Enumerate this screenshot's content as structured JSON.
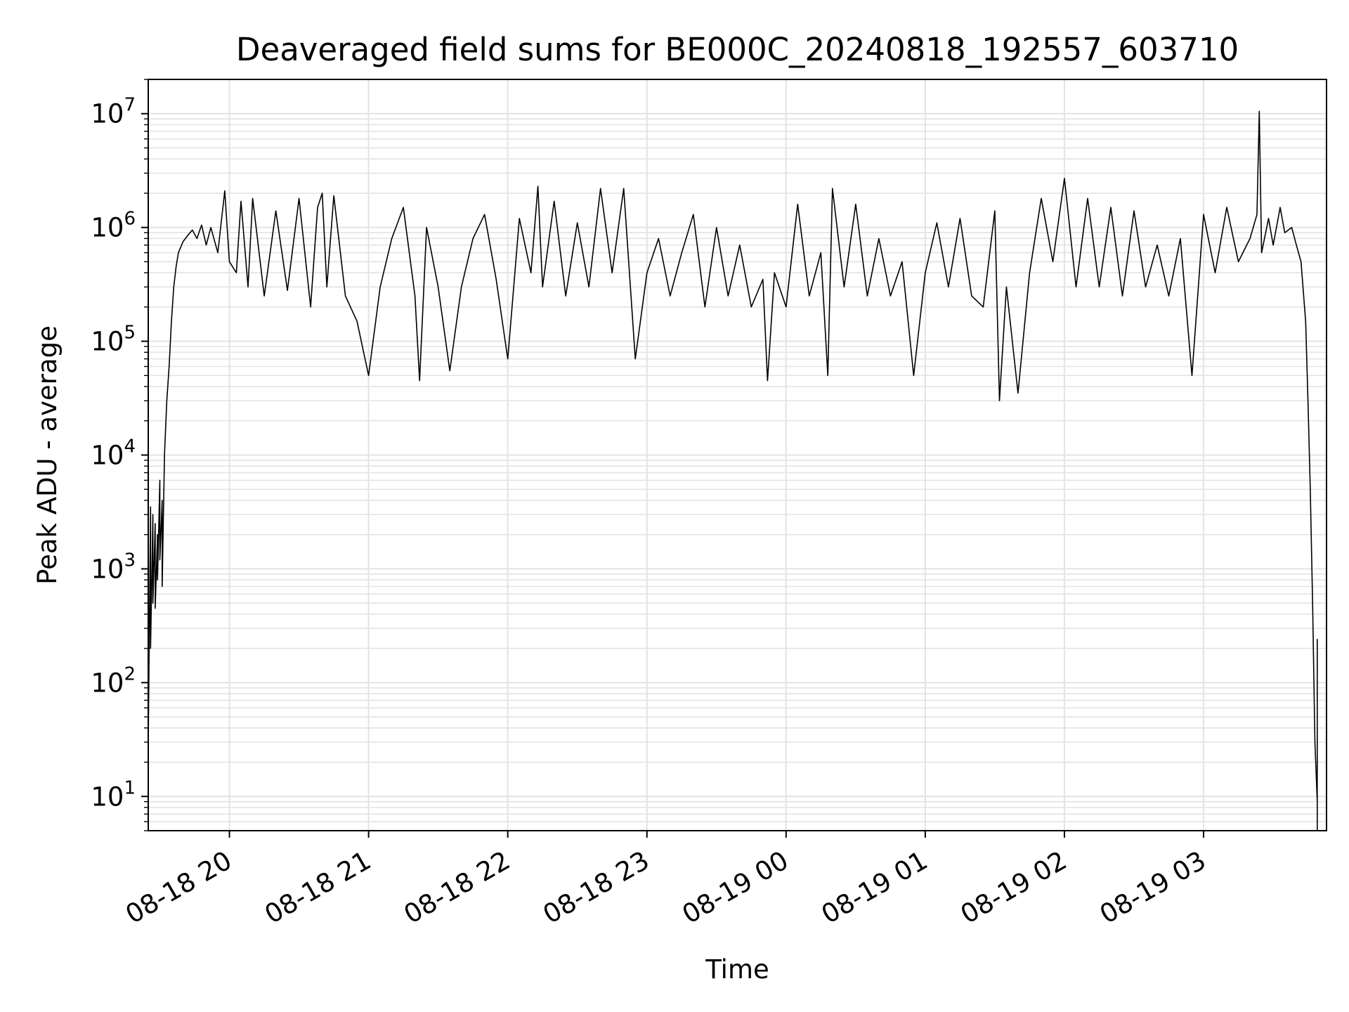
{
  "chart_data": {
    "type": "line",
    "title": "Deaveraged field sums for BE000C_20240818_192557_603710",
    "xlabel": "Time",
    "ylabel": "Peak ADU - average",
    "yscale": "log",
    "xlim": [
      "2024-08-18 19:25",
      "2024-08-19 03:53"
    ],
    "ylim": [
      5,
      20000000
    ],
    "grid": true,
    "line_color": "#000000",
    "grid_color": "#e3e3e3",
    "x_ticks": [
      {
        "value": "2024-08-18 20:00",
        "label": "08-18 20"
      },
      {
        "value": "2024-08-18 21:00",
        "label": "08-18 21"
      },
      {
        "value": "2024-08-18 22:00",
        "label": "08-18 22"
      },
      {
        "value": "2024-08-18 23:00",
        "label": "08-18 23"
      },
      {
        "value": "2024-08-19 00:00",
        "label": "08-19 00"
      },
      {
        "value": "2024-08-19 01:00",
        "label": "08-19 01"
      },
      {
        "value": "2024-08-19 02:00",
        "label": "08-19 02"
      },
      {
        "value": "2024-08-19 03:00",
        "label": "08-19 03"
      }
    ],
    "y_ticks": [
      {
        "value": 10,
        "base": "10",
        "exp": "1"
      },
      {
        "value": 100,
        "base": "10",
        "exp": "2"
      },
      {
        "value": 1000,
        "base": "10",
        "exp": "3"
      },
      {
        "value": 10000,
        "base": "10",
        "exp": "4"
      },
      {
        "value": 100000,
        "base": "10",
        "exp": "5"
      },
      {
        "value": 1000000,
        "base": "10",
        "exp": "6"
      },
      {
        "value": 10000000,
        "base": "10",
        "exp": "7"
      }
    ],
    "series": [
      {
        "points": [
          [
            "2024-08-18 19:25",
            5
          ],
          [
            "2024-08-18 19:25",
            30
          ],
          [
            "2024-08-18 19:26",
            3500
          ],
          [
            "2024-08-18 19:26",
            200
          ],
          [
            "2024-08-18 19:27",
            3000
          ],
          [
            "2024-08-18 19:27",
            500
          ],
          [
            "2024-08-18 19:28",
            2500
          ],
          [
            "2024-08-18 19:28",
            450
          ],
          [
            "2024-08-18 19:29",
            2000
          ],
          [
            "2024-08-18 19:29",
            800
          ],
          [
            "2024-08-18 19:30",
            6000
          ],
          [
            "2024-08-18 19:30",
            1200
          ],
          [
            "2024-08-18 19:31",
            4000
          ],
          [
            "2024-08-18 19:31",
            700
          ],
          [
            "2024-08-18 19:32",
            10000
          ],
          [
            "2024-08-18 19:33",
            30000
          ],
          [
            "2024-08-18 19:34",
            60000
          ],
          [
            "2024-08-18 19:35",
            150000
          ],
          [
            "2024-08-18 19:36",
            300000
          ],
          [
            "2024-08-18 19:37",
            450000
          ],
          [
            "2024-08-18 19:38",
            600000
          ],
          [
            "2024-08-18 19:40",
            750000
          ],
          [
            "2024-08-18 19:42",
            850000
          ],
          [
            "2024-08-18 19:44",
            950000
          ],
          [
            "2024-08-18 19:46",
            800000
          ],
          [
            "2024-08-18 19:48",
            1050000
          ],
          [
            "2024-08-18 19:50",
            700000
          ],
          [
            "2024-08-18 19:52",
            1000000
          ],
          [
            "2024-08-18 19:55",
            600000
          ],
          [
            "2024-08-18 19:58",
            2100000
          ],
          [
            "2024-08-18 20:00",
            500000
          ],
          [
            "2024-08-18 20:03",
            400000
          ],
          [
            "2024-08-18 20:05",
            1700000
          ],
          [
            "2024-08-18 20:08",
            300000
          ],
          [
            "2024-08-18 20:10",
            1800000
          ],
          [
            "2024-08-18 20:15",
            250000
          ],
          [
            "2024-08-18 20:20",
            1400000
          ],
          [
            "2024-08-18 20:25",
            280000
          ],
          [
            "2024-08-18 20:30",
            1800000
          ],
          [
            "2024-08-18 20:35",
            200000
          ],
          [
            "2024-08-18 20:38",
            1500000
          ],
          [
            "2024-08-18 20:40",
            2000000
          ],
          [
            "2024-08-18 20:42",
            300000
          ],
          [
            "2024-08-18 20:45",
            1900000
          ],
          [
            "2024-08-18 20:50",
            250000
          ],
          [
            "2024-08-18 20:55",
            150000
          ],
          [
            "2024-08-18 21:00",
            50000
          ],
          [
            "2024-08-18 21:05",
            300000
          ],
          [
            "2024-08-18 21:10",
            800000
          ],
          [
            "2024-08-18 21:15",
            1500000
          ],
          [
            "2024-08-18 21:20",
            250000
          ],
          [
            "2024-08-18 21:22",
            45000
          ],
          [
            "2024-08-18 21:25",
            1000000
          ],
          [
            "2024-08-18 21:30",
            300000
          ],
          [
            "2024-08-18 21:35",
            55000
          ],
          [
            "2024-08-18 21:40",
            300000
          ],
          [
            "2024-08-18 21:45",
            800000
          ],
          [
            "2024-08-18 21:50",
            1300000
          ],
          [
            "2024-08-18 21:55",
            350000
          ],
          [
            "2024-08-18 22:00",
            70000
          ],
          [
            "2024-08-18 22:05",
            1200000
          ],
          [
            "2024-08-18 22:10",
            400000
          ],
          [
            "2024-08-18 22:13",
            2300000
          ],
          [
            "2024-08-18 22:15",
            300000
          ],
          [
            "2024-08-18 22:20",
            1700000
          ],
          [
            "2024-08-18 22:25",
            250000
          ],
          [
            "2024-08-18 22:30",
            1100000
          ],
          [
            "2024-08-18 22:35",
            300000
          ],
          [
            "2024-08-18 22:40",
            2200000
          ],
          [
            "2024-08-18 22:45",
            400000
          ],
          [
            "2024-08-18 22:50",
            2200000
          ],
          [
            "2024-08-18 22:55",
            70000
          ],
          [
            "2024-08-18 23:00",
            400000
          ],
          [
            "2024-08-18 23:05",
            800000
          ],
          [
            "2024-08-18 23:10",
            250000
          ],
          [
            "2024-08-18 23:15",
            600000
          ],
          [
            "2024-08-18 23:20",
            1300000
          ],
          [
            "2024-08-18 23:25",
            200000
          ],
          [
            "2024-08-18 23:30",
            1000000
          ],
          [
            "2024-08-18 23:35",
            250000
          ],
          [
            "2024-08-18 23:40",
            700000
          ],
          [
            "2024-08-18 23:45",
            200000
          ],
          [
            "2024-08-18 23:50",
            350000
          ],
          [
            "2024-08-18 23:52",
            45000
          ],
          [
            "2024-08-18 23:55",
            400000
          ],
          [
            "2024-08-19 00:00",
            200000
          ],
          [
            "2024-08-19 00:05",
            1600000
          ],
          [
            "2024-08-19 00:10",
            250000
          ],
          [
            "2024-08-19 00:15",
            600000
          ],
          [
            "2024-08-19 00:18",
            50000
          ],
          [
            "2024-08-19 00:20",
            2200000
          ],
          [
            "2024-08-19 00:25",
            300000
          ],
          [
            "2024-08-19 00:30",
            1600000
          ],
          [
            "2024-08-19 00:35",
            250000
          ],
          [
            "2024-08-19 00:40",
            800000
          ],
          [
            "2024-08-19 00:45",
            250000
          ],
          [
            "2024-08-19 00:50",
            500000
          ],
          [
            "2024-08-19 00:55",
            50000
          ],
          [
            "2024-08-19 01:00",
            400000
          ],
          [
            "2024-08-19 01:05",
            1100000
          ],
          [
            "2024-08-19 01:10",
            300000
          ],
          [
            "2024-08-19 01:15",
            1200000
          ],
          [
            "2024-08-19 01:20",
            250000
          ],
          [
            "2024-08-19 01:25",
            200000
          ],
          [
            "2024-08-19 01:30",
            1400000
          ],
          [
            "2024-08-19 01:32",
            30000
          ],
          [
            "2024-08-19 01:35",
            300000
          ],
          [
            "2024-08-19 01:40",
            35000
          ],
          [
            "2024-08-19 01:45",
            400000
          ],
          [
            "2024-08-19 01:50",
            1800000
          ],
          [
            "2024-08-19 01:55",
            500000
          ],
          [
            "2024-08-19 02:00",
            2700000
          ],
          [
            "2024-08-19 02:05",
            300000
          ],
          [
            "2024-08-19 02:10",
            1800000
          ],
          [
            "2024-08-19 02:15",
            300000
          ],
          [
            "2024-08-19 02:20",
            1500000
          ],
          [
            "2024-08-19 02:25",
            250000
          ],
          [
            "2024-08-19 02:30",
            1400000
          ],
          [
            "2024-08-19 02:35",
            300000
          ],
          [
            "2024-08-19 02:40",
            700000
          ],
          [
            "2024-08-19 02:45",
            250000
          ],
          [
            "2024-08-19 02:50",
            800000
          ],
          [
            "2024-08-19 02:55",
            50000
          ],
          [
            "2024-08-19 03:00",
            1300000
          ],
          [
            "2024-08-19 03:05",
            400000
          ],
          [
            "2024-08-19 03:10",
            1500000
          ],
          [
            "2024-08-19 03:15",
            500000
          ],
          [
            "2024-08-19 03:20",
            800000
          ],
          [
            "2024-08-19 03:23",
            1300000
          ],
          [
            "2024-08-19 03:24",
            10500000
          ],
          [
            "2024-08-19 03:25",
            600000
          ],
          [
            "2024-08-19 03:28",
            1200000
          ],
          [
            "2024-08-19 03:30",
            700000
          ],
          [
            "2024-08-19 03:33",
            1500000
          ],
          [
            "2024-08-19 03:35",
            900000
          ],
          [
            "2024-08-19 03:38",
            1000000
          ],
          [
            "2024-08-19 03:40",
            700000
          ],
          [
            "2024-08-19 03:42",
            500000
          ],
          [
            "2024-08-19 03:44",
            150000
          ],
          [
            "2024-08-19 03:45",
            30000
          ],
          [
            "2024-08-19 03:46",
            5000
          ],
          [
            "2024-08-19 03:47",
            500
          ],
          [
            "2024-08-19 03:48",
            30
          ],
          [
            "2024-08-19 03:49",
            9
          ],
          [
            "2024-08-19 03:49",
            240
          ],
          [
            "2024-08-19 03:49",
            5
          ]
        ]
      }
    ]
  }
}
